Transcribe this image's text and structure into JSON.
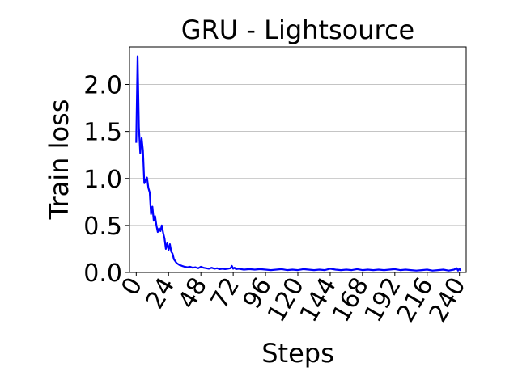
{
  "chart_data": {
    "type": "line",
    "title": "GRU - Lightsource",
    "xlabel": "Steps",
    "ylabel": "Train loss",
    "xlim": [
      -5,
      245
    ],
    "ylim": [
      0,
      2.4
    ],
    "xticks": [
      0,
      24,
      48,
      72,
      96,
      120,
      144,
      168,
      192,
      216,
      240
    ],
    "xtick_labels": [
      "0",
      "24",
      "48",
      "72",
      "96",
      "120",
      "144",
      "168",
      "192",
      "216",
      "240"
    ],
    "yticks": [
      0,
      0.5,
      1.0,
      1.5,
      2.0
    ],
    "ytick_labels": [
      "0.0",
      "0.5",
      "1.0",
      "1.5",
      "2.0"
    ],
    "grid": "horizontal",
    "series": [
      {
        "color": "#0000ff",
        "x": [
          0,
          1,
          2,
          3,
          4,
          5,
          6,
          7,
          8,
          9,
          10,
          11,
          12,
          13,
          14,
          15,
          16,
          17,
          18,
          19,
          20,
          21,
          22,
          23,
          24,
          25,
          26,
          27,
          28,
          29,
          30,
          32,
          34,
          36,
          38,
          40,
          42,
          44,
          46,
          48,
          50,
          52,
          54,
          56,
          58,
          60,
          62,
          64,
          66,
          68,
          70,
          71,
          72,
          73,
          74,
          76,
          80,
          84,
          88,
          92,
          96,
          100,
          104,
          108,
          112,
          116,
          120,
          124,
          128,
          132,
          136,
          140,
          144,
          148,
          152,
          156,
          160,
          164,
          168,
          172,
          176,
          180,
          184,
          188,
          192,
          196,
          200,
          204,
          208,
          212,
          216,
          220,
          224,
          228,
          232,
          236,
          238,
          239,
          240,
          241
        ],
        "y": [
          1.38,
          2.3,
          1.55,
          1.27,
          1.43,
          1.3,
          0.95,
          0.98,
          1.01,
          0.9,
          0.85,
          0.62,
          0.7,
          0.55,
          0.6,
          0.5,
          0.43,
          0.47,
          0.44,
          0.5,
          0.42,
          0.36,
          0.25,
          0.31,
          0.24,
          0.3,
          0.22,
          0.2,
          0.14,
          0.12,
          0.1,
          0.08,
          0.07,
          0.06,
          0.055,
          0.06,
          0.05,
          0.055,
          0.045,
          0.06,
          0.05,
          0.045,
          0.04,
          0.05,
          0.04,
          0.045,
          0.035,
          0.04,
          0.035,
          0.04,
          0.045,
          0.07,
          0.04,
          0.05,
          0.035,
          0.04,
          0.03,
          0.035,
          0.03,
          0.035,
          0.03,
          0.025,
          0.03,
          0.035,
          0.025,
          0.03,
          0.025,
          0.035,
          0.03,
          0.025,
          0.03,
          0.025,
          0.04,
          0.03,
          0.025,
          0.03,
          0.025,
          0.035,
          0.025,
          0.03,
          0.025,
          0.03,
          0.025,
          0.03,
          0.035,
          0.025,
          0.03,
          0.025,
          0.02,
          0.025,
          0.03,
          0.02,
          0.025,
          0.03,
          0.02,
          0.03,
          0.045,
          0.02,
          0.04,
          0.02
        ]
      }
    ]
  }
}
